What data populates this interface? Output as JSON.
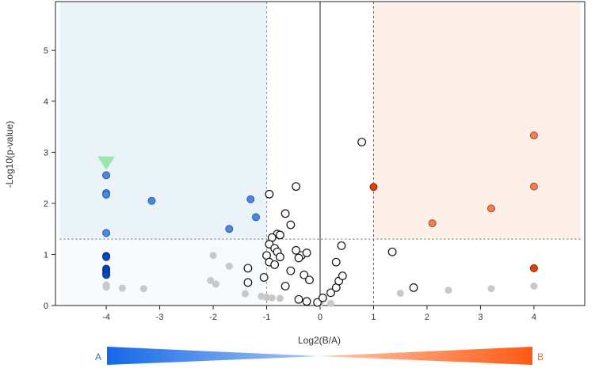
{
  "chart_data": {
    "type": "scatter",
    "title": "",
    "xlabel": "Log2(B/A)",
    "ylabel": "-Log10(p-value)",
    "xlim": [
      -4.95,
      4.95
    ],
    "ylim": [
      0,
      5.95
    ],
    "xticks": [
      -4,
      -3,
      -2,
      -1,
      0,
      1,
      2,
      3,
      4
    ],
    "yticks": [
      0,
      1,
      2,
      3,
      4,
      5
    ],
    "grid": false,
    "thresholds": {
      "fold_change_x": [
        -1,
        1
      ],
      "p_value_y": 1.3
    },
    "colors": {
      "left_region": "#eaf4f8",
      "right_region": "#fdf0e9",
      "down_light": "#4d88e0",
      "down_dark": "#0a46c6",
      "up_light": "#f08050",
      "up_dark": "#e0400c",
      "not_significant_fill": "#c8c8c8",
      "outline_point": "#111111",
      "marker_triangle": "#99e6b0"
    },
    "series": [
      {
        "style": "down-light",
        "points": [
          [
            -4.0,
            2.55
          ],
          [
            -4.0,
            2.2
          ],
          [
            -4.0,
            2.17
          ],
          [
            -4.0,
            1.42
          ],
          [
            -3.15,
            2.05
          ],
          [
            -1.7,
            1.5
          ],
          [
            -1.3,
            2.08
          ],
          [
            -1.2,
            1.73
          ]
        ]
      },
      {
        "style": "down-dark",
        "points": [
          [
            -4.0,
            0.97
          ],
          [
            -4.0,
            0.95
          ],
          [
            -4.0,
            0.72
          ],
          [
            -4.0,
            0.69
          ],
          [
            -4.0,
            0.64
          ],
          [
            -4.0,
            0.6
          ]
        ]
      },
      {
        "style": "up-light",
        "points": [
          [
            2.1,
            1.61
          ],
          [
            3.2,
            1.9
          ],
          [
            4.0,
            3.33
          ],
          [
            4.0,
            2.33
          ]
        ]
      },
      {
        "style": "up-dark",
        "points": [
          [
            1.0,
            2.32
          ],
          [
            4.0,
            0.73
          ]
        ]
      },
      {
        "style": "not-significant",
        "points": [
          [
            -4.0,
            0.4
          ],
          [
            -4.0,
            0.36
          ],
          [
            -3.7,
            0.34
          ],
          [
            -3.3,
            0.33
          ],
          [
            -2.0,
            0.98
          ],
          [
            -2.05,
            0.49
          ],
          [
            -1.95,
            0.42
          ],
          [
            -1.7,
            0.77
          ],
          [
            -1.4,
            0.23
          ],
          [
            -1.1,
            0.18
          ],
          [
            -1.0,
            0.16
          ],
          [
            -0.9,
            0.15
          ],
          [
            -0.75,
            0.14
          ],
          [
            0.0,
            0.05
          ],
          [
            0.2,
            0.04
          ],
          [
            1.5,
            0.24
          ],
          [
            2.4,
            0.3
          ],
          [
            3.2,
            0.33
          ],
          [
            4.0,
            0.38
          ]
        ]
      },
      {
        "style": "outline",
        "points": [
          [
            0.78,
            3.2
          ],
          [
            -0.45,
            2.33
          ],
          [
            -0.95,
            2.18
          ],
          [
            -0.65,
            1.8
          ],
          [
            -0.55,
            1.58
          ],
          [
            -0.8,
            1.4
          ],
          [
            -0.75,
            1.38
          ],
          [
            -0.9,
            1.33
          ],
          [
            -0.95,
            1.2
          ],
          [
            -0.85,
            1.12
          ],
          [
            -0.8,
            1.05
          ],
          [
            -1.0,
            0.98
          ],
          [
            -0.75,
            0.95
          ],
          [
            -0.95,
            0.85
          ],
          [
            -0.85,
            0.8
          ],
          [
            -1.35,
            0.73
          ],
          [
            -1.05,
            0.55
          ],
          [
            -1.35,
            0.45
          ],
          [
            -0.65,
            0.38
          ],
          [
            -0.55,
            0.68
          ],
          [
            -0.45,
            1.08
          ],
          [
            -0.35,
            0.98
          ],
          [
            -0.25,
            1.03
          ],
          [
            -0.4,
            0.93
          ],
          [
            -0.3,
            0.6
          ],
          [
            -0.2,
            0.5
          ],
          [
            -0.4,
            0.12
          ],
          [
            -0.25,
            0.08
          ],
          [
            -0.05,
            0.06
          ],
          [
            0.05,
            0.15
          ],
          [
            0.2,
            0.25
          ],
          [
            0.3,
            0.35
          ],
          [
            0.35,
            0.48
          ],
          [
            0.42,
            0.58
          ],
          [
            0.3,
            0.85
          ],
          [
            0.4,
            1.17
          ],
          [
            1.35,
            1.05
          ],
          [
            1.75,
            0.35
          ]
        ]
      },
      {
        "style": "triangle",
        "points": [
          [
            -4.0,
            2.78
          ]
        ]
      }
    ]
  },
  "gradient": {
    "left_label": "A",
    "right_label": "B",
    "left_color": "#1568e8",
    "right_color": "#ff5a14"
  }
}
